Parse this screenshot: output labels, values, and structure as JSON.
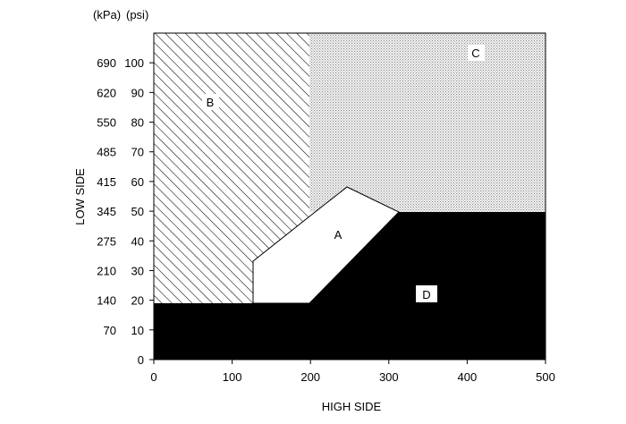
{
  "header": {
    "kpa_unit": "(kPa)",
    "psi_unit": "(psi)"
  },
  "axes": {
    "x_title": "HIGH SIDE",
    "y_title": "LOW SIDE",
    "x_ticks": [
      "0",
      "100",
      "200",
      "300",
      "400",
      "500"
    ],
    "y_psi_ticks": [
      "0",
      "10",
      "20",
      "30",
      "40",
      "50",
      "60",
      "70",
      "80",
      "90",
      "100"
    ],
    "y_kpa_ticks": [
      "",
      "70",
      "140",
      "210",
      "275",
      "345",
      "415",
      "485",
      "550",
      "620",
      "690"
    ]
  },
  "zones": {
    "a": "A",
    "b": "B",
    "c": "C",
    "d": "D"
  },
  "colors": {
    "zone_c_fill": "#e6e6e6",
    "zone_d_fill": "#000000",
    "hatch": "#000000"
  }
}
